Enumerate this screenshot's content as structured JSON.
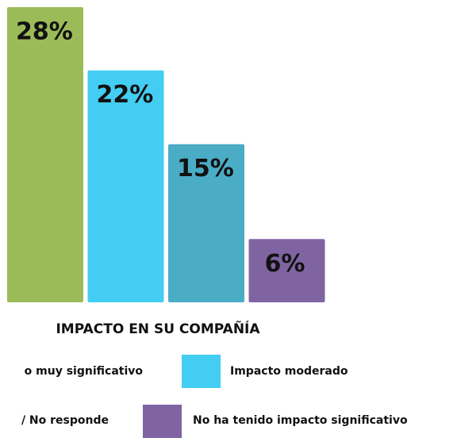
{
  "chart_data": {
    "type": "bar",
    "title": "IMPACTO EN SU COMPAÑÍA",
    "categories": [
      "o muy significativo",
      "Impacto moderado",
      "/ No responde",
      "No ha tenido impacto significativo"
    ],
    "values": [
      28,
      22,
      15,
      6
    ],
    "value_labels": [
      "28%",
      "22%",
      "15%",
      "6%"
    ],
    "colors": [
      "#9bbb59",
      "#44cdf3",
      "#4bacc6",
      "#8064a2"
    ]
  }
}
